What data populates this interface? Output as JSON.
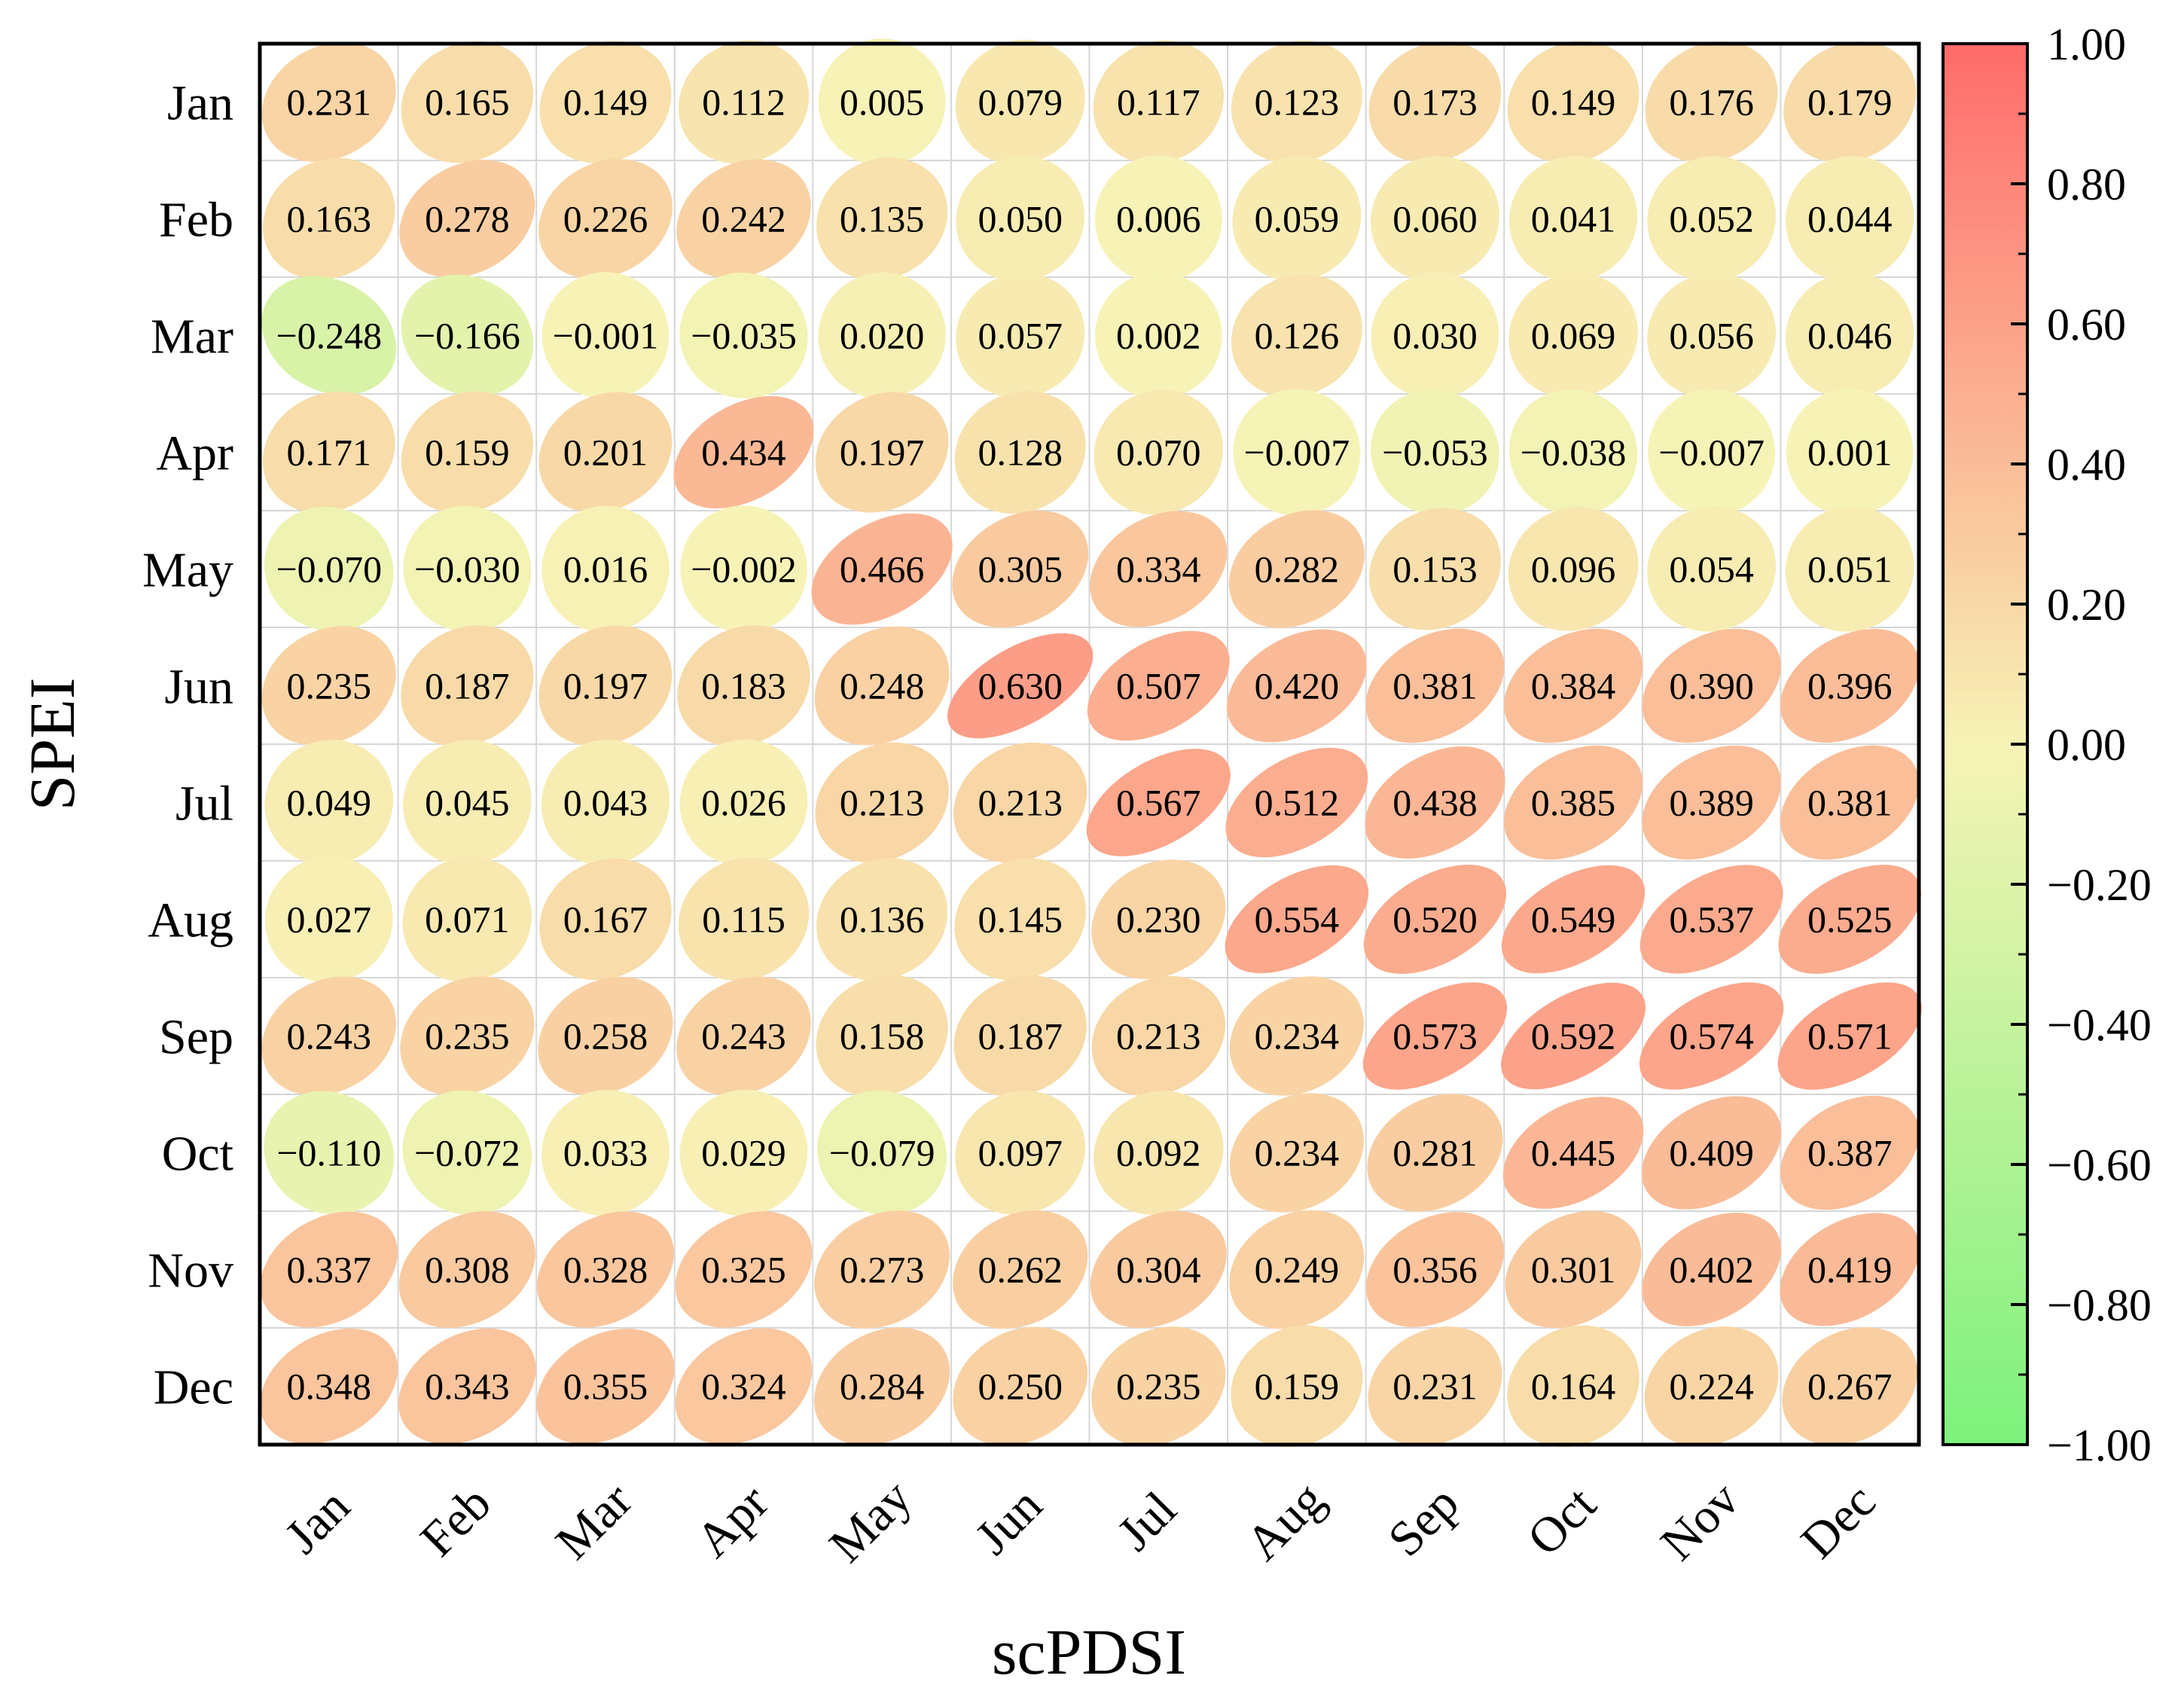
{
  "chart_data": {
    "type": "heatmap",
    "xlabel": "scPDSI",
    "ylabel": "SPEI",
    "x_categories": [
      "Jan",
      "Feb",
      "Mar",
      "Apr",
      "May",
      "Jun",
      "Jul",
      "Aug",
      "Sep",
      "Oct",
      "Nov",
      "Dec"
    ],
    "y_categories": [
      "Jan",
      "Feb",
      "Mar",
      "Apr",
      "May",
      "Jun",
      "Jul",
      "Aug",
      "Sep",
      "Oct",
      "Nov",
      "Dec"
    ],
    "values": [
      [
        0.231,
        0.165,
        0.149,
        0.112,
        0.005,
        0.079,
        0.117,
        0.123,
        0.173,
        0.149,
        0.176,
        0.179
      ],
      [
        0.163,
        0.278,
        0.226,
        0.242,
        0.135,
        0.05,
        0.006,
        0.059,
        0.06,
        0.041,
        0.052,
        0.044
      ],
      [
        -0.248,
        -0.166,
        -0.001,
        -0.035,
        0.02,
        0.057,
        0.002,
        0.126,
        0.03,
        0.069,
        0.056,
        0.046
      ],
      [
        0.171,
        0.159,
        0.201,
        0.434,
        0.197,
        0.128,
        0.07,
        -0.007,
        -0.053,
        -0.038,
        -0.007,
        0.001
      ],
      [
        -0.07,
        -0.03,
        0.016,
        -0.002,
        0.466,
        0.305,
        0.334,
        0.282,
        0.153,
        0.096,
        0.054,
        0.051
      ],
      [
        0.235,
        0.187,
        0.197,
        0.183,
        0.248,
        0.63,
        0.507,
        0.42,
        0.381,
        0.384,
        0.39,
        0.396
      ],
      [
        0.049,
        0.045,
        0.043,
        0.026,
        0.213,
        0.213,
        0.567,
        0.512,
        0.438,
        0.385,
        0.389,
        0.381
      ],
      [
        0.027,
        0.071,
        0.167,
        0.115,
        0.136,
        0.145,
        0.23,
        0.554,
        0.52,
        0.549,
        0.537,
        0.525
      ],
      [
        0.243,
        0.235,
        0.258,
        0.243,
        0.158,
        0.187,
        0.213,
        0.234,
        0.573,
        0.592,
        0.574,
        0.571
      ],
      [
        -0.11,
        -0.072,
        0.033,
        0.029,
        -0.079,
        0.097,
        0.092,
        0.234,
        0.281,
        0.445,
        0.409,
        0.387
      ],
      [
        0.337,
        0.308,
        0.328,
        0.325,
        0.273,
        0.262,
        0.304,
        0.249,
        0.356,
        0.301,
        0.402,
        0.419
      ],
      [
        0.348,
        0.343,
        0.355,
        0.324,
        0.284,
        0.25,
        0.235,
        0.159,
        0.231,
        0.164,
        0.224,
        0.267
      ]
    ],
    "colorbar": {
      "range": [
        -1.0,
        1.0
      ],
      "ticks": [
        "1.00",
        "0.80",
        "0.60",
        "0.40",
        "0.20",
        "0.00",
        "−0.20",
        "−0.40",
        "−0.60",
        "−0.80",
        "−1.00"
      ],
      "tick_values": [
        1.0,
        0.8,
        0.6,
        0.4,
        0.2,
        0.0,
        -0.2,
        -0.4,
        -0.6,
        -0.8,
        -1.0
      ],
      "colors": {
        "min": "#7cf27c",
        "mid": "#f7f3b6",
        "max": "#ff6b6b"
      }
    },
    "marker": "ellipse",
    "grid": true
  }
}
